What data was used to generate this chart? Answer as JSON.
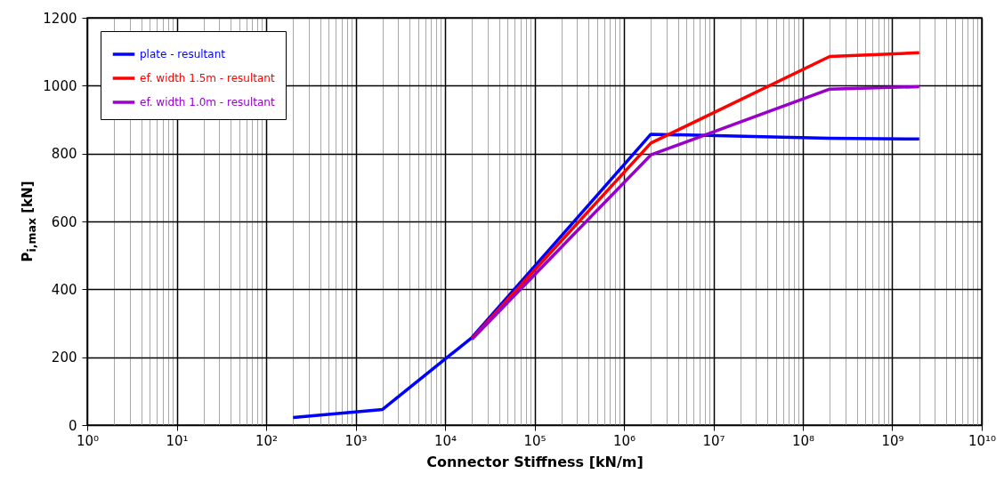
{
  "chart_data": {
    "type": "line",
    "xlabel": "Connector Stiffness [kN/m]",
    "ylabel": "P$_{i,max}$ [kN]",
    "x": [
      200,
      2000,
      20000,
      2000000,
      200000000,
      2000000000
    ],
    "series": [
      {
        "name": "plate - resultant",
        "color": "#0000ff",
        "values": [
          22,
          46,
          258,
          857,
          845,
          843
        ]
      },
      {
        "name": "ef. width 1.5m - resultant",
        "color": "#ff0000",
        "values": [
          null,
          null,
          255,
          831,
          1086,
          1097
        ]
      },
      {
        "name": "ef. width 1.0m - resultant",
        "color": "#9900cc",
        "values": [
          null,
          null,
          253,
          796,
          990,
          997
        ]
      }
    ],
    "log": "x",
    "xlim": [
      1,
      10000000000
    ],
    "ylim": [
      0,
      1200
    ],
    "xticks": [
      {
        "value": 1,
        "label": "10⁰"
      },
      {
        "value": 2,
        "label": null
      },
      {
        "value": 3,
        "label": null
      },
      {
        "value": 4,
        "label": null
      },
      {
        "value": 5,
        "label": null
      },
      {
        "value": 6,
        "label": null
      },
      {
        "value": 7,
        "label": null
      },
      {
        "value": 8,
        "label": null
      },
      {
        "value": 9,
        "label": null
      },
      {
        "value": 10,
        "label": "10¹"
      },
      {
        "value": 20,
        "label": null
      },
      {
        "value": 30,
        "label": null
      },
      {
        "value": 40,
        "label": null
      },
      {
        "value": 50,
        "label": null
      },
      {
        "value": 60,
        "label": null
      },
      {
        "value": 70,
        "label": null
      },
      {
        "value": 80,
        "label": null
      },
      {
        "value": 90,
        "label": null
      },
      {
        "value": 100,
        "label": "10²"
      },
      {
        "value": 200,
        "label": null
      },
      {
        "value": 300,
        "label": null
      },
      {
        "value": 400,
        "label": null
      },
      {
        "value": 500,
        "label": null
      },
      {
        "value": 600,
        "label": null
      },
      {
        "value": 700,
        "label": null
      },
      {
        "value": 800,
        "label": null
      },
      {
        "value": 900,
        "label": null
      },
      {
        "value": 1000,
        "label": "10³"
      },
      {
        "value": 2000,
        "label": null
      },
      {
        "value": 3000,
        "label": null
      },
      {
        "value": 4000,
        "label": null
      },
      {
        "value": 5000,
        "label": null
      },
      {
        "value": 6000,
        "label": null
      },
      {
        "value": 7000,
        "label": null
      },
      {
        "value": 8000,
        "label": null
      },
      {
        "value": 9000,
        "label": null
      },
      {
        "value": 10000,
        "label": "10⁴"
      },
      {
        "value": 20000,
        "label": null
      },
      {
        "value": 30000,
        "label": null
      },
      {
        "value": 40000,
        "label": null
      },
      {
        "value": 50000,
        "label": null
      },
      {
        "value": 60000,
        "label": null
      },
      {
        "value": 70000,
        "label": null
      },
      {
        "value": 80000,
        "label": null
      },
      {
        "value": 90000,
        "label": null
      },
      {
        "value": 100000,
        "label": "10⁵"
      },
      {
        "value": 200000,
        "label": null
      },
      {
        "value": 300000,
        "label": null
      },
      {
        "value": 400000,
        "label": null
      },
      {
        "value": 500000,
        "label": null
      },
      {
        "value": 600000,
        "label": null
      },
      {
        "value": 700000,
        "label": null
      },
      {
        "value": 800000,
        "label": null
      },
      {
        "value": 900000,
        "label": null
      },
      {
        "value": 1000000,
        "label": "10⁶"
      },
      {
        "value": 2000000,
        "label": null
      },
      {
        "value": 3000000,
        "label": null
      },
      {
        "value": 4000000,
        "label": null
      },
      {
        "value": 5000000,
        "label": null
      },
      {
        "value": 6000000,
        "label": null
      },
      {
        "value": 7000000,
        "label": null
      },
      {
        "value": 8000000,
        "label": null
      },
      {
        "value": 9000000,
        "label": null
      },
      {
        "value": 10000000,
        "label": "10⁷"
      },
      {
        "value": 20000000,
        "label": null
      },
      {
        "value": 30000000,
        "label": null
      },
      {
        "value": 40000000,
        "label": null
      },
      {
        "value": 50000000,
        "label": null
      },
      {
        "value": 60000000,
        "label": null
      },
      {
        "value": 70000000,
        "label": null
      },
      {
        "value": 80000000,
        "label": null
      },
      {
        "value": 90000000,
        "label": null
      },
      {
        "value": 100000000,
        "label": "10⁸"
      },
      {
        "value": 200000000,
        "label": null
      },
      {
        "value": 300000000,
        "label": null
      },
      {
        "value": 400000000,
        "label": null
      },
      {
        "value": 500000000,
        "label": null
      },
      {
        "value": 600000000,
        "label": null
      },
      {
        "value": 700000000,
        "label": null
      },
      {
        "value": 800000000,
        "label": null
      },
      {
        "value": 900000000,
        "label": null
      },
      {
        "value": 1000000000,
        "label": "10⁹"
      },
      {
        "value": 2000000000,
        "label": null
      },
      {
        "value": 3000000000,
        "label": null
      },
      {
        "value": 4000000000,
        "label": null
      },
      {
        "value": 5000000000,
        "label": null
      },
      {
        "value": 6000000000,
        "label": null
      },
      {
        "value": 7000000000,
        "label": null
      },
      {
        "value": 8000000000,
        "label": null
      },
      {
        "value": 9000000000,
        "label": null
      },
      {
        "value": 10000000000,
        "label": "10¹⁰"
      }
    ],
    "yticks": [
      0,
      200,
      400,
      600,
      800,
      1000,
      1200
    ],
    "grid": true,
    "legend": "top left",
    "marker": "none",
    "line_style": "solid"
  }
}
